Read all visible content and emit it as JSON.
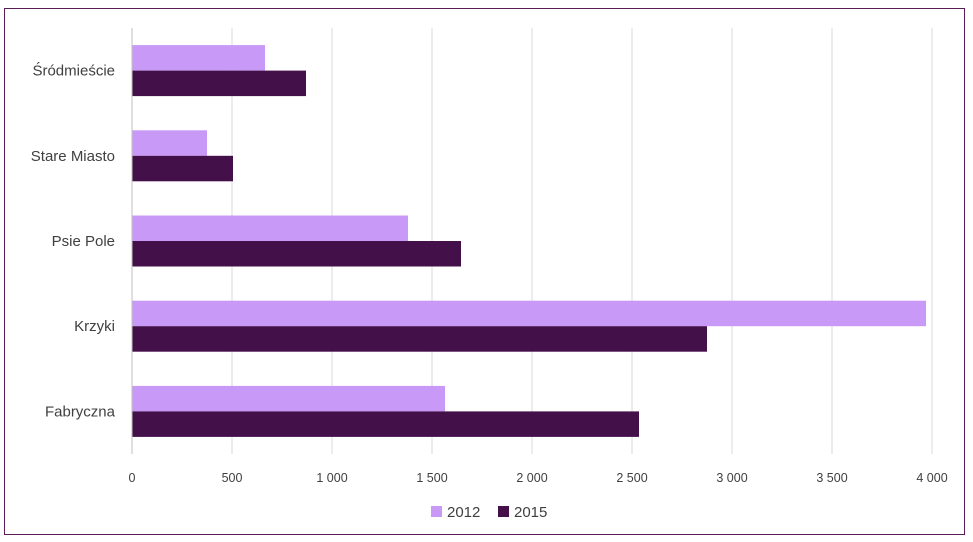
{
  "chart_data": {
    "type": "bar",
    "orientation": "horizontal",
    "categories": [
      "Śródmieście",
      "Stare Miasto",
      "Psie Pole",
      "Krzyki",
      "Fabryczna"
    ],
    "series": [
      {
        "name": "2012",
        "color": "#c999f7",
        "values": [
          665,
          375,
          1380,
          3970,
          1565
        ]
      },
      {
        "name": "2015",
        "color": "#44104a",
        "values": [
          870,
          505,
          1645,
          2875,
          2535
        ]
      }
    ],
    "xlim": [
      0,
      4000
    ],
    "xticks": [
      0,
      500,
      1000,
      1500,
      2000,
      2500,
      3000,
      3500,
      4000
    ],
    "xtick_labels": [
      "0",
      "500",
      "1 000",
      "1 500",
      "2 000",
      "2 500",
      "3 000",
      "3 500",
      "4 000"
    ],
    "grid": "vertical",
    "legend": "bottom",
    "title": "",
    "xlabel": "",
    "ylabel": ""
  }
}
